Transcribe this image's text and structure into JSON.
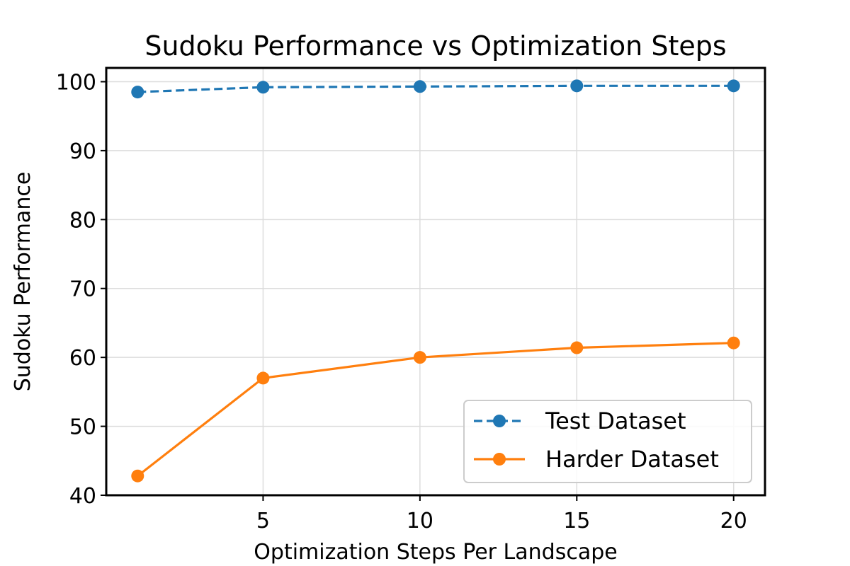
{
  "chart_data": {
    "type": "line",
    "title": "Sudoku Performance vs Optimization Steps",
    "xlabel": "Optimization Steps Per Landscape",
    "ylabel": "Sudoku Performance",
    "xlim": [
      0,
      21
    ],
    "ylim": [
      40,
      102
    ],
    "x_ticks": [
      5,
      10,
      15,
      20
    ],
    "y_ticks": [
      40,
      50,
      60,
      70,
      80,
      90,
      100
    ],
    "grid": true,
    "legend_position": "lower-right",
    "series": [
      {
        "name": "Test Dataset",
        "color": "#1f77b4",
        "line_style": "dashed",
        "marker": "circle",
        "x": [
          1,
          5,
          10,
          15,
          20
        ],
        "values": [
          98.5,
          99.2,
          99.3,
          99.4,
          99.4
        ]
      },
      {
        "name": "Harder Dataset",
        "color": "#ff7f0e",
        "line_style": "solid",
        "marker": "circle",
        "x": [
          1,
          5,
          10,
          15,
          20
        ],
        "values": [
          42.8,
          57.0,
          60.0,
          61.4,
          62.1
        ]
      }
    ]
  }
}
